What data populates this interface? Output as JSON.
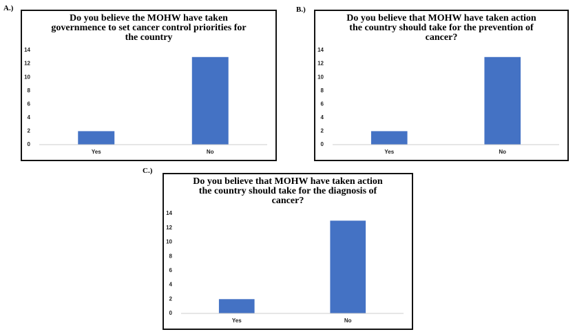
{
  "chart_data": [
    {
      "type": "bar",
      "panel_label": "A.)",
      "title": "Do you believe the MOHW have taken governmence to set cancer control priorities for the country",
      "categories": [
        "Yes",
        "No"
      ],
      "values": [
        2,
        13
      ],
      "color": "#4472c4",
      "ylim": [
        0,
        14
      ],
      "yticks": [
        0,
        2,
        4,
        6,
        8,
        10,
        12,
        14
      ],
      "grid": false
    },
    {
      "type": "bar",
      "panel_label": "B.)",
      "title": "Do you believe that MOHW have taken action the country should take for the prevention of cancer?",
      "categories": [
        "Yes",
        "No"
      ],
      "values": [
        2,
        13
      ],
      "color": "#4472c4",
      "ylim": [
        0,
        14
      ],
      "yticks": [
        0,
        2,
        4,
        6,
        8,
        10,
        12,
        14
      ],
      "grid": false
    },
    {
      "type": "bar",
      "panel_label": "C.)",
      "title": "Do you believe that MOHW have taken action the country should take for the diagnosis of cancer?",
      "categories": [
        "Yes",
        "No"
      ],
      "values": [
        2,
        13
      ],
      "color": "#4472c4",
      "ylim": [
        0,
        14
      ],
      "yticks": [
        0,
        2,
        4,
        6,
        8,
        10,
        12,
        14
      ],
      "grid": false
    }
  ]
}
